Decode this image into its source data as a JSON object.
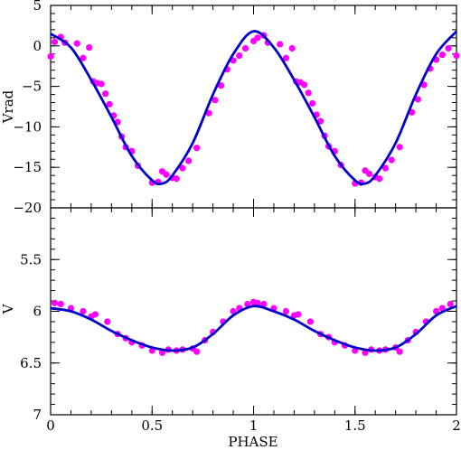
{
  "chart_data": [
    {
      "type": "scatter",
      "panel": "top",
      "title": "",
      "xlabel": "",
      "ylabel": "Vrad",
      "xlim": [
        0,
        2
      ],
      "ylim": [
        -20,
        5
      ],
      "xticks": [
        "0",
        "0.5",
        "1",
        "1.5",
        "2"
      ],
      "xtick_values": [
        0,
        0.5,
        1,
        1.5,
        2
      ],
      "yticks": [
        "5",
        "0",
        "−5",
        "−10",
        "−15",
        "−20"
      ],
      "ytick_values": [
        5,
        0,
        -5,
        -10,
        -15,
        -20
      ],
      "grid": false,
      "point_color": "#ff00ff",
      "line_color": "#0000cc",
      "series": [
        {
          "type": "scatter",
          "x": [
            0.0,
            0.02,
            0.05,
            0.07,
            0.13,
            0.16,
            0.19,
            0.21,
            0.23,
            0.25,
            0.27,
            0.29,
            0.31,
            0.33,
            0.35,
            0.37,
            0.4,
            0.43,
            0.5,
            0.53,
            0.55,
            0.57,
            0.6,
            0.62,
            0.65,
            0.68,
            0.72,
            0.78,
            0.81,
            0.84,
            0.87,
            0.9,
            0.93,
            0.96,
            1.0,
            1.02,
            1.05,
            1.07,
            1.13,
            1.16,
            1.19,
            1.21,
            1.23,
            1.25,
            1.27,
            1.29,
            1.31,
            1.33,
            1.35,
            1.37,
            1.4,
            1.43,
            1.5,
            1.53,
            1.55,
            1.57,
            1.6,
            1.62,
            1.65,
            1.68,
            1.72,
            1.78,
            1.81,
            1.84,
            1.87,
            1.9,
            1.93,
            1.96,
            2.0
          ],
          "values": [
            -1.3,
            0.5,
            1.1,
            0.4,
            0.3,
            -1.5,
            -0.2,
            -4.4,
            -4.6,
            -4.7,
            -5.9,
            -7.2,
            -8.6,
            -9.4,
            -11.2,
            -12.5,
            -13.0,
            -14.8,
            -16.9,
            -16.8,
            -15.5,
            -15.9,
            -16.3,
            -16.4,
            -15.1,
            -14.2,
            -12.6,
            -8.3,
            -6.7,
            -4.9,
            -2.9,
            -1.8,
            -1.2,
            -0.3,
            0.6,
            1.0,
            1.3,
            0.4,
            0.2,
            -1.5,
            -0.3,
            -4.4,
            -4.5,
            -4.8,
            -5.8,
            -7.1,
            -8.5,
            -9.3,
            -11.1,
            -12.4,
            -13.0,
            -14.7,
            -17.0,
            -16.9,
            -15.4,
            -15.8,
            -16.2,
            -16.4,
            -15.1,
            -14.1,
            -12.5,
            -8.2,
            -6.6,
            -4.8,
            -2.8,
            -1.7,
            -1.1,
            -0.3,
            -1.2
          ]
        },
        {
          "type": "line",
          "x": [
            0.0,
            0.1,
            0.2,
            0.3,
            0.4,
            0.5,
            0.55,
            0.6,
            0.7,
            0.8,
            0.9,
            1.0,
            1.1,
            1.2,
            1.3,
            1.4,
            1.5,
            1.55,
            1.6,
            1.7,
            1.8,
            1.9,
            2.0
          ],
          "values": [
            1.5,
            -0.2,
            -4.2,
            -8.8,
            -13.6,
            -16.6,
            -17.0,
            -16.0,
            -12.0,
            -6.0,
            -1.0,
            1.8,
            -0.2,
            -4.2,
            -8.8,
            -13.6,
            -16.6,
            -17.0,
            -16.0,
            -12.0,
            -6.0,
            -1.0,
            1.8
          ]
        }
      ]
    },
    {
      "type": "scatter",
      "panel": "bottom",
      "title": "",
      "xlabel": "PHASE",
      "ylabel": "V",
      "xlim": [
        0,
        2
      ],
      "ylim": [
        7,
        5
      ],
      "xticks": [
        "0",
        "0.5",
        "1",
        "1.5",
        "2"
      ],
      "xtick_values": [
        0,
        0.5,
        1,
        1.5,
        2
      ],
      "yticks": [
        "5.5",
        "6",
        "6.5",
        "7"
      ],
      "ytick_values": [
        5.5,
        6,
        6.5,
        7
      ],
      "grid": false,
      "point_color": "#ff00ff",
      "line_color": "#0000cc",
      "series": [
        {
          "type": "scatter",
          "x": [
            0.02,
            0.05,
            0.1,
            0.16,
            0.2,
            0.22,
            0.28,
            0.33,
            0.37,
            0.4,
            0.45,
            0.5,
            0.55,
            0.58,
            0.62,
            0.65,
            0.7,
            0.72,
            0.76,
            0.8,
            0.85,
            0.9,
            0.93,
            0.97,
            1.0,
            1.02,
            1.05,
            1.1,
            1.16,
            1.2,
            1.22,
            1.28,
            1.33,
            1.37,
            1.4,
            1.45,
            1.5,
            1.55,
            1.58,
            1.62,
            1.65,
            1.7,
            1.72,
            1.76,
            1.8,
            1.85,
            1.9,
            1.93,
            1.97
          ],
          "values": [
            5.92,
            5.93,
            5.97,
            6.0,
            6.05,
            6.03,
            6.1,
            6.22,
            6.26,
            6.3,
            6.33,
            6.38,
            6.4,
            6.37,
            6.38,
            6.37,
            6.36,
            6.39,
            6.28,
            6.2,
            6.1,
            6.0,
            5.97,
            5.93,
            5.91,
            5.92,
            5.93,
            5.97,
            6.0,
            6.04,
            6.03,
            6.1,
            6.22,
            6.25,
            6.3,
            6.33,
            6.38,
            6.4,
            6.37,
            6.38,
            6.37,
            6.35,
            6.39,
            6.28,
            6.2,
            6.1,
            6.0,
            5.97,
            5.93
          ]
        },
        {
          "type": "line",
          "x": [
            0.0,
            0.1,
            0.2,
            0.3,
            0.4,
            0.5,
            0.6,
            0.7,
            0.8,
            0.9,
            1.0,
            1.1,
            1.2,
            1.3,
            1.4,
            1.5,
            1.6,
            1.7,
            1.8,
            1.9,
            2.0
          ],
          "values": [
            5.97,
            6.0,
            6.08,
            6.19,
            6.28,
            6.35,
            6.38,
            6.35,
            6.22,
            6.04,
            5.95,
            6.0,
            6.08,
            6.19,
            6.28,
            6.35,
            6.38,
            6.35,
            6.22,
            6.04,
            5.95
          ]
        }
      ]
    }
  ]
}
